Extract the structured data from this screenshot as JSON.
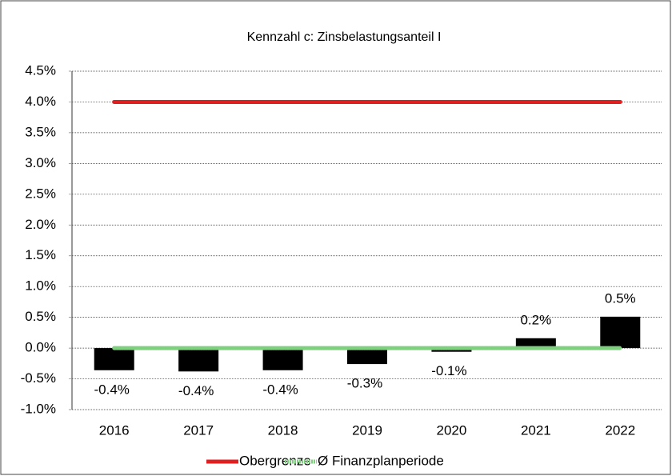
{
  "chart_data": {
    "type": "bar",
    "title": "Kennzahl c: Zinsbelastungsanteil I",
    "categories": [
      "2016",
      "2017",
      "2018",
      "2019",
      "2020",
      "2021",
      "2022"
    ],
    "values": [
      -0.36,
      -0.38,
      -0.36,
      -0.26,
      -0.06,
      0.16,
      0.51
    ],
    "value_labels": [
      "-0.4%",
      "-0.4%",
      "-0.4%",
      "-0.3%",
      "-0.1%",
      "0.2%",
      "0.5%"
    ],
    "color": "#000000",
    "lines": [
      {
        "name": "Obergrenze",
        "color": "#e02020",
        "values": [
          4.0,
          4.0,
          4.0,
          4.0,
          4.0,
          4.0,
          4.0
        ]
      },
      {
        "name": "Ø Finanzplanperiode",
        "color": "#7ed07e",
        "values": [
          0.0,
          0.0,
          0.0,
          0.0,
          0.0,
          0.0,
          0.0
        ]
      }
    ],
    "ylim": [
      -1.0,
      4.5
    ],
    "yticks": [
      {
        "value": -1.0,
        "label": "-1.0%"
      },
      {
        "value": -0.5,
        "label": "-0.5%"
      },
      {
        "value": 0.0,
        "label": "0.0%"
      },
      {
        "value": 0.5,
        "label": "0.5%"
      },
      {
        "value": 1.0,
        "label": "1.0%"
      },
      {
        "value": 1.5,
        "label": "1.5%"
      },
      {
        "value": 2.0,
        "label": "2.0%"
      },
      {
        "value": 2.5,
        "label": "2.5%"
      },
      {
        "value": 3.0,
        "label": "3.0%"
      },
      {
        "value": 3.5,
        "label": "3.5%"
      },
      {
        "value": 4.0,
        "label": "4.0%"
      },
      {
        "value": 4.5,
        "label": "4.5%"
      }
    ],
    "grid": true,
    "legend": "bottom"
  }
}
